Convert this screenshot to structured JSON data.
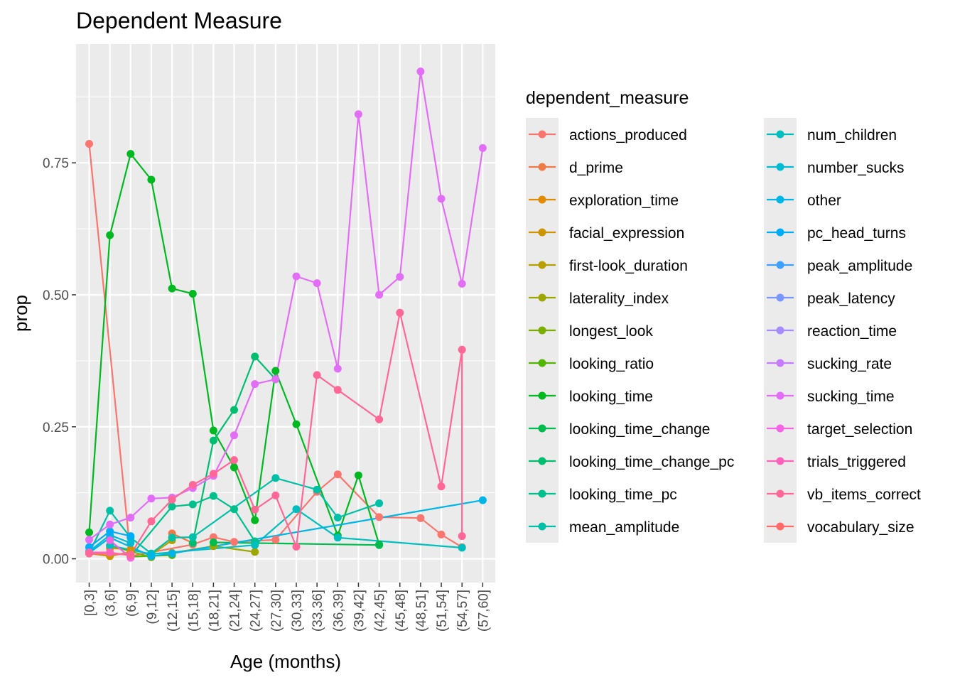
{
  "chart_data": {
    "type": "line",
    "title": "Dependent Measure",
    "xlabel": "Age (months)",
    "ylabel": "prop",
    "ylim": [
      -0.045,
      0.975
    ],
    "yticks": [
      0,
      0.25,
      0.5,
      0.75
    ],
    "ytick_labels": [
      "0.00",
      "0.25",
      "0.50",
      "0.75"
    ],
    "grid": true,
    "legend": {
      "title": "dependent_measure",
      "placement": "right"
    },
    "categories": [
      "[0,3]",
      "(3,6]",
      "(6,9]",
      "(9,12]",
      "(12,15]",
      "(15,18]",
      "(18,21]",
      "(21,24]",
      "(24,27]",
      "(27,30]",
      "(30,33]",
      "(33,36]",
      "(36,39]",
      "(39,42]",
      "(42,45]",
      "(45,48]",
      "(48,51]",
      "(51,54]",
      "(54,57]",
      "(57,60]"
    ],
    "series": [
      {
        "name": "actions_produced",
        "color": "#F8766D",
        "points": [
          [
            0,
            0.786
          ],
          [
            2,
            0.005
          ],
          [
            5,
            0.027
          ],
          [
            6,
            0.041
          ],
          [
            7,
            0.032
          ],
          [
            9,
            0.036
          ],
          [
            11,
            0.127
          ],
          [
            12,
            0.16
          ],
          [
            14,
            0.079
          ],
          [
            16,
            0.077
          ],
          [
            17,
            0.046
          ],
          [
            18,
            0.022
          ]
        ]
      },
      {
        "name": "d_prime",
        "color": "#EE7A47",
        "points": [
          [
            4,
            0.048
          ],
          [
            5,
            0.03
          ]
        ]
      },
      {
        "name": "exploration_time",
        "color": "#E08B00",
        "points": [
          [
            1,
            0.02
          ],
          [
            2,
            0.018
          ]
        ]
      },
      {
        "name": "facial_expression",
        "color": "#CD9600",
        "points": [
          [
            0,
            0.01
          ],
          [
            1,
            0.005
          ],
          [
            2,
            0.013
          ]
        ]
      },
      {
        "name": "first-look_duration",
        "color": "#B79F00",
        "points": [
          [
            3,
            0.008
          ],
          [
            4,
            0.035
          ]
        ]
      },
      {
        "name": "laterality_index",
        "color": "#9DA700",
        "points": [
          [
            4,
            0.011
          ],
          [
            6,
            0.024
          ],
          [
            8,
            0.013
          ]
        ]
      },
      {
        "name": "longest_look",
        "color": "#7CAE00",
        "points": [
          [
            1,
            0.025
          ],
          [
            3,
            0.003
          ]
        ]
      },
      {
        "name": "looking_ratio",
        "color": "#52B500",
        "points": [
          [
            2,
            0.004
          ],
          [
            4,
            0.007
          ]
        ]
      },
      {
        "name": "looking_time",
        "color": "#00B81F",
        "points": [
          [
            0,
            0.05
          ],
          [
            1,
            0.613
          ],
          [
            2,
            0.767
          ],
          [
            3,
            0.718
          ],
          [
            4,
            0.512
          ],
          [
            5,
            0.502
          ],
          [
            6,
            0.243
          ],
          [
            7,
            0.173
          ],
          [
            8,
            0.073
          ],
          [
            9,
            0.356
          ],
          [
            10,
            0.255
          ],
          [
            12,
            0.044
          ],
          [
            13,
            0.158
          ],
          [
            14,
            0.027
          ]
        ]
      },
      {
        "name": "looking_time_change",
        "color": "#00BB4E",
        "points": [
          [
            6,
            0.031
          ],
          [
            14,
            0.026
          ]
        ]
      },
      {
        "name": "looking_time_change_pc",
        "color": "#00BE70",
        "points": [
          [
            5,
            0.03
          ],
          [
            6,
            0.224
          ],
          [
            7,
            0.282
          ],
          [
            8,
            0.383
          ],
          [
            9,
            0.34
          ]
        ]
      },
      {
        "name": "looking_time_pc",
        "color": "#00C08D",
        "points": [
          [
            2,
            0.005
          ],
          [
            4,
            0.099
          ],
          [
            5,
            0.103
          ],
          [
            6,
            0.119
          ],
          [
            7,
            0.094
          ],
          [
            8,
            0.033
          ]
        ]
      },
      {
        "name": "mean_amplitude",
        "color": "#00C0A7",
        "points": [
          [
            0,
            0.011
          ],
          [
            1,
            0.091
          ],
          [
            2,
            0.04
          ],
          [
            3,
            0.01
          ],
          [
            4,
            0.04
          ],
          [
            5,
            0.041
          ],
          [
            9,
            0.153
          ],
          [
            11,
            0.131
          ],
          [
            12,
            0.078
          ],
          [
            14,
            0.105
          ]
        ]
      },
      {
        "name": "num_children",
        "color": "#00BFBE",
        "points": [
          [
            1,
            0.025
          ],
          [
            3,
            0.009
          ],
          [
            8,
            0.026
          ],
          [
            10,
            0.094
          ],
          [
            12,
            0.04
          ],
          [
            18,
            0.021
          ]
        ]
      },
      {
        "name": "number_sucks",
        "color": "#00BBD4",
        "points": [
          [
            0,
            0.014
          ],
          [
            1,
            0.045
          ],
          [
            2,
            0.03
          ]
        ]
      },
      {
        "name": "other",
        "color": "#00B5E7",
        "points": [
          [
            0,
            0.011
          ],
          [
            1,
            0.04
          ],
          [
            3,
            0.005
          ],
          [
            4,
            0.01
          ],
          [
            19,
            0.111
          ]
        ]
      },
      {
        "name": "pc_head_turns",
        "color": "#00ADF9",
        "points": [
          [
            0,
            0.022
          ],
          [
            1,
            0.052
          ],
          [
            2,
            0.043
          ]
        ]
      },
      {
        "name": "peak_amplitude",
        "color": "#3CA0FF",
        "points": []
      },
      {
        "name": "peak_latency",
        "color": "#7A97FF",
        "points": []
      },
      {
        "name": "reaction_time",
        "color": "#A68AFF",
        "points": []
      },
      {
        "name": "sucking_rate",
        "color": "#C77CFF",
        "points": []
      },
      {
        "name": "sucking_time",
        "color": "#E36EF6",
        "points": [
          [
            0,
            0.036
          ],
          [
            1,
            0.065
          ],
          [
            2,
            0.078
          ],
          [
            3,
            0.114
          ],
          [
            4,
            0.116
          ],
          [
            5,
            0.134
          ],
          [
            6,
            0.157
          ],
          [
            7,
            0.234
          ],
          [
            8,
            0.331
          ],
          [
            9,
            0.34
          ],
          [
            10,
            0.535
          ],
          [
            11,
            0.522
          ],
          [
            12,
            0.36
          ],
          [
            13,
            0.842
          ],
          [
            14,
            0.5
          ],
          [
            15,
            0.534
          ],
          [
            16,
            0.923
          ],
          [
            17,
            0.682
          ],
          [
            18,
            0.521
          ],
          [
            19,
            0.778
          ]
        ]
      },
      {
        "name": "target_selection",
        "color": "#F564E3",
        "points": [
          [
            1,
            0.035
          ],
          [
            2,
            0.002
          ]
        ]
      },
      {
        "name": "trials_triggered",
        "color": "#FF62BC",
        "points": [
          [
            0,
            0.012
          ],
          [
            1,
            0.012
          ],
          [
            2,
            0.006
          ]
        ]
      },
      {
        "name": "vb_items_correct",
        "color": "#FF6896",
        "points": [
          [
            0,
            0.01
          ],
          [
            2,
            0.008
          ],
          [
            3,
            0.071
          ],
          [
            4,
            0.112
          ],
          [
            5,
            0.14
          ],
          [
            6,
            0.161
          ],
          [
            7,
            0.187
          ],
          [
            8,
            0.093
          ],
          [
            9,
            0.12
          ],
          [
            10,
            0.023
          ],
          [
            11,
            0.348
          ],
          [
            12,
            0.32
          ],
          [
            14,
            0.264
          ],
          [
            15,
            0.466
          ],
          [
            17,
            0.137
          ],
          [
            18,
            0.396
          ],
          [
            18,
            0.043
          ]
        ]
      },
      {
        "name": "vocabulary_size",
        "color": "#FF6C67",
        "points": []
      }
    ]
  }
}
